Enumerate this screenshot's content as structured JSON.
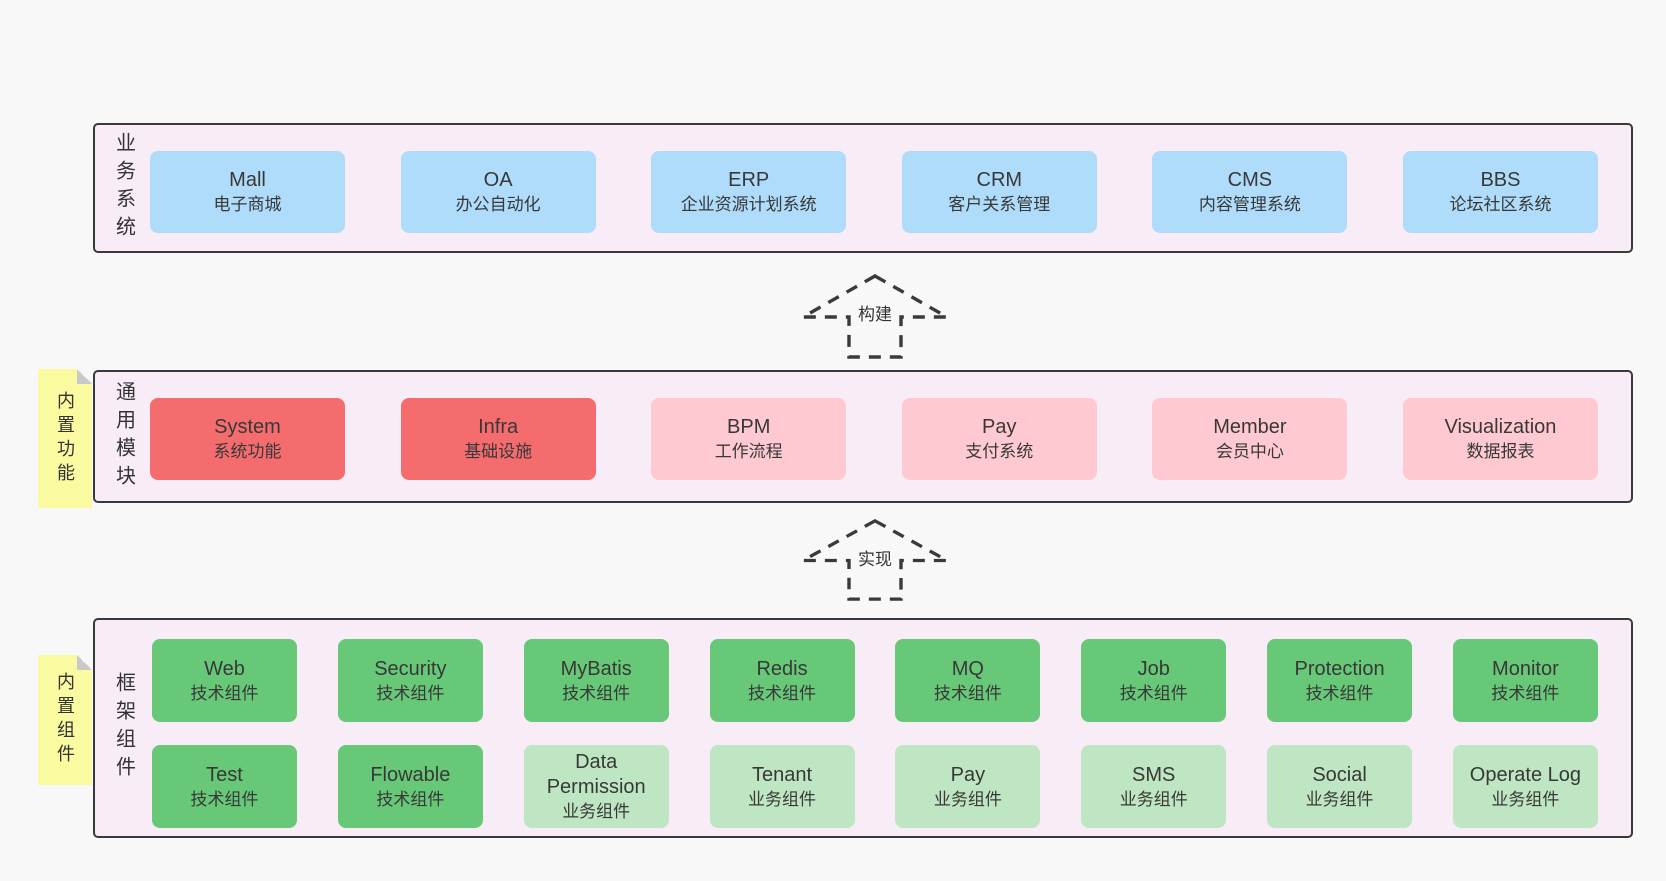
{
  "colors": {
    "page_bg": "#f8f8f8",
    "band_bg": "#f8edf6",
    "band_border": "#3a3a3a",
    "text": "#333333",
    "blue": "#aedcfa",
    "red": "#f56c6f",
    "pink": "#ffc9d2",
    "green": "#67c878",
    "light_green": "#bfe6c3",
    "sticky_yellow": "#fafaa0",
    "sticky_fold": "#c9c9c9"
  },
  "bands": [
    {
      "name": "business-systems",
      "label": "业务系统",
      "sticky": null,
      "rows": [
        [
          {
            "title": "Mall",
            "subtitle": "电子商城",
            "color": "blue"
          },
          {
            "title": "OA",
            "subtitle": "办公自动化",
            "color": "blue"
          },
          {
            "title": "ERP",
            "subtitle": "企业资源计划系统",
            "color": "blue"
          },
          {
            "title": "CRM",
            "subtitle": "客户关系管理",
            "color": "blue"
          },
          {
            "title": "CMS",
            "subtitle": "内容管理系统",
            "color": "blue"
          },
          {
            "title": "BBS",
            "subtitle": "论坛社区系统",
            "color": "blue"
          }
        ]
      ]
    },
    {
      "name": "common-modules",
      "label": "通用模块",
      "sticky": "内置功能",
      "rows": [
        [
          {
            "title": "System",
            "subtitle": "系统功能",
            "color": "red"
          },
          {
            "title": "Infra",
            "subtitle": "基础设施",
            "color": "red"
          },
          {
            "title": "BPM",
            "subtitle": "工作流程",
            "color": "pink"
          },
          {
            "title": "Pay",
            "subtitle": "支付系统",
            "color": "pink"
          },
          {
            "title": "Member",
            "subtitle": "会员中心",
            "color": "pink"
          },
          {
            "title": "Visualization",
            "subtitle": "数据报表",
            "color": "pink"
          }
        ]
      ]
    },
    {
      "name": "framework-components",
      "label": "框架组件",
      "sticky": "内置组件",
      "rows": [
        [
          {
            "title": "Web",
            "subtitle": "技术组件",
            "color": "green"
          },
          {
            "title": "Security",
            "subtitle": "技术组件",
            "color": "green"
          },
          {
            "title": "MyBatis",
            "subtitle": "技术组件",
            "color": "green"
          },
          {
            "title": "Redis",
            "subtitle": "技术组件",
            "color": "green"
          },
          {
            "title": "MQ",
            "subtitle": "技术组件",
            "color": "green"
          },
          {
            "title": "Job",
            "subtitle": "技术组件",
            "color": "green"
          },
          {
            "title": "Protection",
            "subtitle": "技术组件",
            "color": "green"
          },
          {
            "title": "Monitor",
            "subtitle": "技术组件",
            "color": "green"
          }
        ],
        [
          {
            "title": "Test",
            "subtitle": "技术组件",
            "color": "green"
          },
          {
            "title": "Flowable",
            "subtitle": "技术组件",
            "color": "green"
          },
          {
            "title": "Data Permission",
            "subtitle": "业务组件",
            "color": "light_green"
          },
          {
            "title": "Tenant",
            "subtitle": "业务组件",
            "color": "light_green"
          },
          {
            "title": "Pay",
            "subtitle": "业务组件",
            "color": "light_green"
          },
          {
            "title": "SMS",
            "subtitle": "业务组件",
            "color": "light_green"
          },
          {
            "title": "Social",
            "subtitle": "业务组件",
            "color": "light_green"
          },
          {
            "title": "Operate Log",
            "subtitle": "业务组件",
            "color": "light_green"
          }
        ]
      ]
    }
  ],
  "arrows": [
    {
      "label": "构建"
    },
    {
      "label": "实现"
    }
  ]
}
